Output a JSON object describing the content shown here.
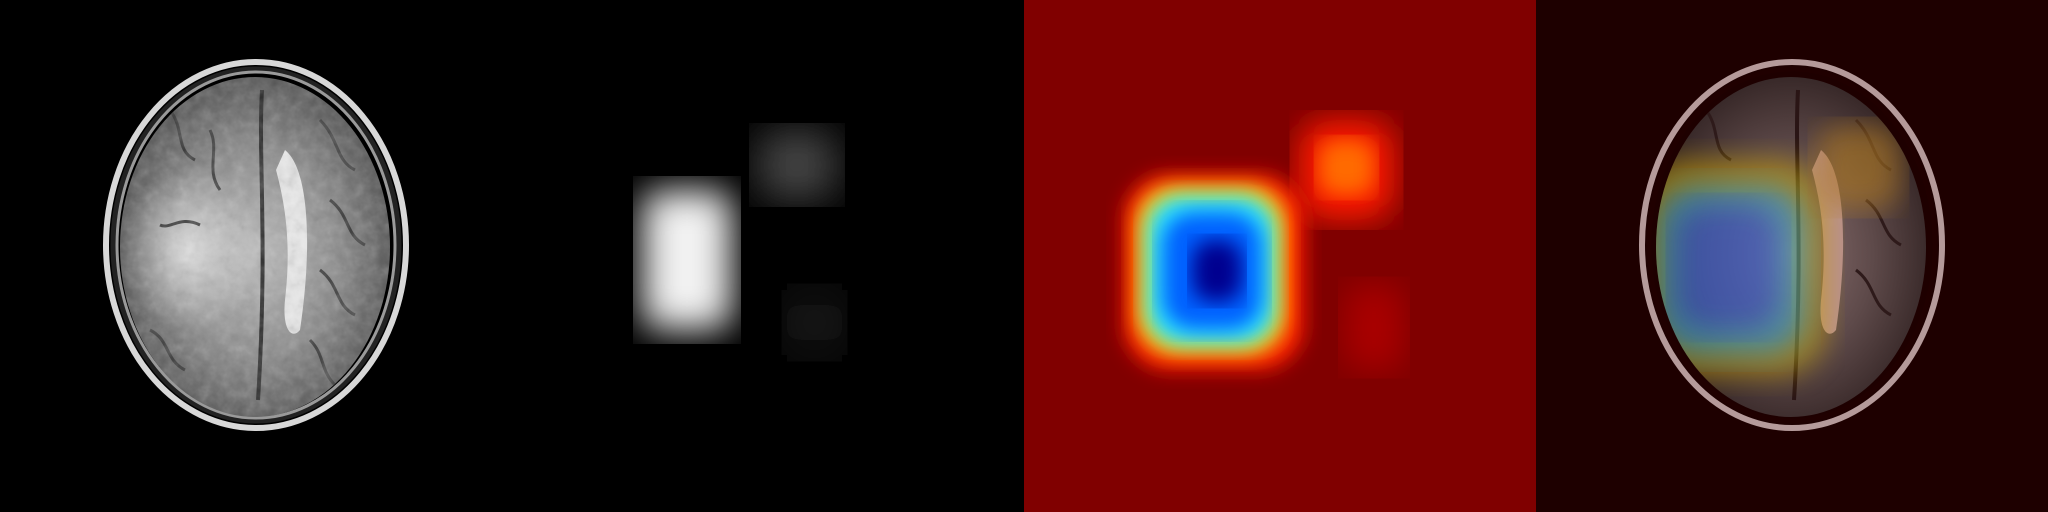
{
  "panels": [
    {
      "id": "mri-slice",
      "kind": "grayscale-mri",
      "background": "#000000"
    },
    {
      "id": "attention-map",
      "kind": "grayscale-heatmap",
      "background": "#000000"
    },
    {
      "id": "jet-heatmap",
      "kind": "jet-colormap",
      "background": "#800000"
    },
    {
      "id": "overlay",
      "kind": "heatmap-overlay",
      "background": "#1e0000"
    }
  ],
  "colors": {
    "jet_low": "#800000",
    "jet_mid_red": "#ff1a00",
    "jet_orange": "#ff6a00",
    "jet_yellow": "#ffd400",
    "jet_cyan": "#29e6ff",
    "jet_blue": "#0060ff",
    "jet_deep": "#00008f",
    "overlay_tint": "#2b0000"
  }
}
